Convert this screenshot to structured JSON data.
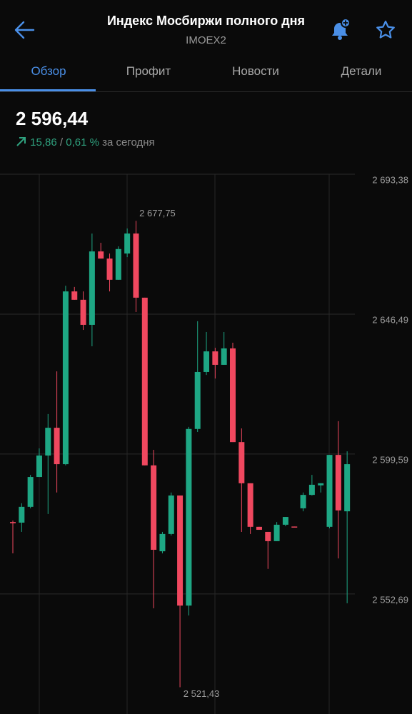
{
  "header": {
    "title": "Индекс Мосбиржи полного дня",
    "subtitle": "IMOEX2"
  },
  "tabs": [
    "Обзор",
    "Профит",
    "Новости",
    "Детали"
  ],
  "quote": {
    "price": "2 596,44",
    "change": "15,86",
    "separator": "/",
    "change_percent": "0,61 %",
    "period": "за сегодня"
  },
  "chart_data": {
    "type": "candlestick",
    "categories": [
      null,
      null,
      null,
      null,
      null,
      null,
      null,
      null,
      null,
      null,
      null,
      null,
      null,
      null,
      null,
      null,
      null,
      null,
      null,
      null,
      null,
      null,
      null,
      null,
      null,
      null,
      null,
      null,
      null,
      null,
      null,
      null,
      null,
      null,
      null,
      null,
      null,
      null,
      null
    ],
    "open": [
      2576.8,
      2576.6,
      2581.9,
      2591.9,
      2599.1,
      2608.4,
      2596.2,
      2654.1,
      2651.3,
      2642.9,
      2667.5,
      2665.1,
      2658.0,
      2666.8,
      2673.5,
      2652.0,
      2595.8,
      2567.0,
      2572.8,
      2585.7,
      2548.8,
      2608.0,
      2627.1,
      2634.0,
      2629.5,
      2635.0,
      2603.6,
      2589.8,
      2575.2,
      2573.5,
      2570.4,
      2575.9,
      2575.3,
      2581.4,
      2585.9,
      2589.1,
      2575.2,
      2599.3,
      2580.4
    ],
    "high": [
      2577.3,
      2583.1,
      2592.6,
      2601.5,
      2613.0,
      2627.3,
      2656.0,
      2655.6,
      2654.1,
      2673.5,
      2670.4,
      2666.8,
      2669.2,
      2675.2,
      2677.75,
      2652.0,
      2601.0,
      2573.5,
      2586.7,
      2585.7,
      2608.7,
      2644.1,
      2640.5,
      2635.2,
      2640.5,
      2636.9,
      2608.2,
      2589.8,
      2575.2,
      2573.5,
      2576.8,
      2578.5,
      2575.3,
      2586.7,
      2592.6,
      2589.8,
      2599.3,
      2610.6,
      2600.5
    ],
    "low": [
      2566.3,
      2573.5,
      2581.4,
      2591.9,
      2579.5,
      2586.7,
      2595.8,
      2651.3,
      2641.2,
      2635.7,
      2665.1,
      2654.1,
      2658.0,
      2665.6,
      2647.2,
      2595.8,
      2547.9,
      2566.3,
      2572.3,
      2521.43,
      2545.5,
      2607.0,
      2626.1,
      2624.9,
      2629.5,
      2603.6,
      2573.5,
      2572.8,
      2574.2,
      2561.1,
      2570.4,
      2575.4,
      2575.2,
      2580.4,
      2585.7,
      2586.7,
      2574.7,
      2564.6,
      2549.6
    ],
    "close": [
      2576.4,
      2581.9,
      2591.9,
      2599.1,
      2608.4,
      2596.2,
      2654.1,
      2651.3,
      2642.9,
      2667.5,
      2665.1,
      2658.0,
      2668.3,
      2673.5,
      2652.0,
      2595.8,
      2567.5,
      2572.8,
      2585.7,
      2548.8,
      2608.0,
      2627.1,
      2634.0,
      2629.5,
      2635.0,
      2603.6,
      2589.8,
      2575.2,
      2574.2,
      2570.4,
      2575.9,
      2578.5,
      2575.2,
      2585.9,
      2589.3,
      2589.8,
      2599.3,
      2580.7,
      2596.2
    ],
    "up_color": "#1ea784",
    "down_color": "#f0485f",
    "ylim": [
      2515,
      2693.38
    ],
    "yticks": [
      {
        "value": 2693.38,
        "label": "2 693,38"
      },
      {
        "value": 2646.49,
        "label": "2 646,49"
      },
      {
        "value": 2599.59,
        "label": "2 599,59"
      },
      {
        "value": 2552.69,
        "label": "2 552,69"
      }
    ],
    "grid": true,
    "annotations": [
      {
        "label": "2 677,75",
        "value": 2677.75
      },
      {
        "label": "2 521,43",
        "value": 2521.43
      }
    ]
  }
}
